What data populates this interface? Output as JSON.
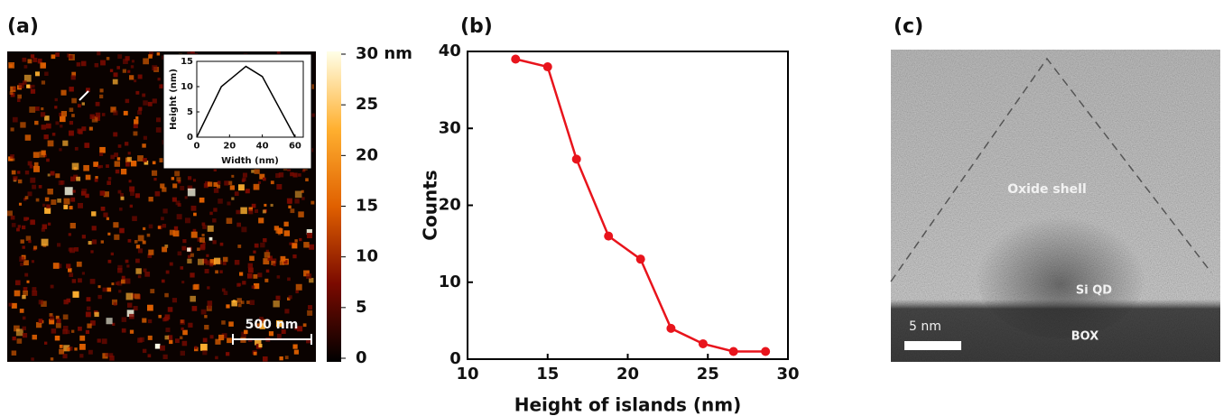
{
  "chart_data": [
    {
      "type": "image",
      "panel_label": "(a)",
      "scale_bar": "500 nm",
      "colorbar": {
        "lim": [
          0,
          30
        ],
        "ticks": [
          0,
          5,
          10,
          15,
          20,
          25,
          {
            "value": 30,
            "label": "30 nm"
          }
        ],
        "colormap": [
          "#000000",
          "#7a0a00",
          "#e06000",
          "#ffb030",
          "#ffffe8"
        ]
      },
      "inset": {
        "type": "line",
        "xlabel": "Width (nm)",
        "ylabel": "Height (nm)",
        "x": [
          0,
          15,
          30,
          40,
          60
        ],
        "values": [
          0,
          10,
          14,
          12,
          0
        ],
        "color": "#000000",
        "xlim": [
          0,
          65
        ],
        "ylim": [
          0,
          15
        ],
        "xticks": [
          0,
          20,
          40,
          60
        ],
        "yticks": [
          0,
          5,
          10,
          15
        ]
      }
    },
    {
      "type": "line",
      "panel_label": "(b)",
      "xlabel": "Height of islands (nm)",
      "ylabel": "Counts",
      "x": [
        13,
        15,
        16.8,
        18.8,
        20.8,
        22.7,
        24.7,
        26.6,
        28.6
      ],
      "values": [
        39,
        38,
        26,
        16,
        13,
        4,
        2,
        1,
        1
      ],
      "color": "#e8141c",
      "markers": true,
      "xlim": [
        10,
        30
      ],
      "ylim": [
        0,
        40
      ],
      "xticks": [
        10,
        15,
        20,
        25,
        30
      ],
      "yticks": [
        0,
        10,
        20,
        30,
        40
      ]
    },
    {
      "type": "image",
      "panel_label": "(c)",
      "scale_bar": "5 nm",
      "annotations": [
        "Oxide shell",
        "Si QD",
        "BOX"
      ]
    }
  ]
}
